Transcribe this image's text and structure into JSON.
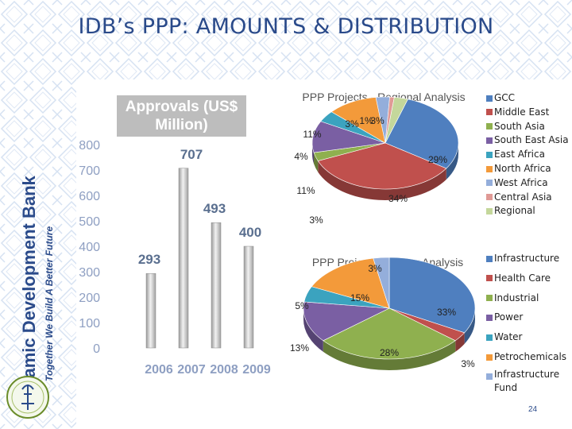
{
  "title": "IDB’s PPP: AMOUNTS & DISTRIBUTION",
  "sidebar": {
    "brand": "Islamic Development Bank",
    "tagline": "Together We Build A Better Future",
    "emblem": "idb-emblem"
  },
  "page_number": "24",
  "colors": {
    "title": "#2a4a8a",
    "bar": "#c8c8c8",
    "bar_labels": "#5a6f8f",
    "axis_labels": "#8e9fc2",
    "background_pattern": "#d6e2f2"
  },
  "chart_data": [
    {
      "type": "bar",
      "title": "Approvals (US$ Million)",
      "categories": [
        "2006",
        "2007",
        "2008",
        "2009"
      ],
      "values": [
        293,
        707,
        493,
        400
      ],
      "ylim": [
        0,
        800
      ],
      "yticks": [
        "0",
        "100",
        "200",
        "300",
        "400",
        "500",
        "600",
        "700",
        "800"
      ],
      "grid": false
    },
    {
      "type": "pie",
      "title": "PPP Projects - Regional Analysis",
      "legend_position": "right",
      "slices": [
        {
          "label": "GCC",
          "value": 29,
          "display": "29%",
          "color": "#4f7fbf"
        },
        {
          "label": "Middle East",
          "value": 34,
          "display": "34%",
          "color": "#c0504d"
        },
        {
          "label": "South Asia",
          "value": 3,
          "display": "3%",
          "color": "#8fb04f"
        },
        {
          "label": "South East Asia",
          "value": 11,
          "display": "11%",
          "color": "#7a5fa3"
        },
        {
          "label": "East Africa",
          "value": 4,
          "display": "4%",
          "color": "#3ba3bf"
        },
        {
          "label": "North Africa",
          "value": 11,
          "display": "11%",
          "color": "#f39a3a"
        },
        {
          "label": "West Africa",
          "value": 3,
          "display": "3%",
          "color": "#94aedb"
        },
        {
          "label": "Central Asia",
          "value": 1,
          "display": "1%",
          "color": "#e09a96"
        },
        {
          "label": "Regional",
          "value": 3,
          "display": "3%",
          "color": "#c4d79b"
        }
      ]
    },
    {
      "type": "pie",
      "title": "PPP Projects - Sector Analysis",
      "legend_position": "right",
      "slices": [
        {
          "label": "Infrastructure",
          "value": 33,
          "display": "33%",
          "color": "#4f7fbf"
        },
        {
          "label": "Health Care",
          "value": 3,
          "display": "3%",
          "color": "#c0504d"
        },
        {
          "label": "Industrial",
          "value": 28,
          "display": "28%",
          "color": "#8fb04f"
        },
        {
          "label": "Power",
          "value": 13,
          "display": "13%",
          "color": "#7a5fa3"
        },
        {
          "label": "Water",
          "value": 5,
          "display": "5%",
          "color": "#3ba3bf"
        },
        {
          "label": "Petrochemicals",
          "value": 15,
          "display": "15%",
          "color": "#f39a3a"
        },
        {
          "label": "Infrastructure Fund",
          "value": 3,
          "display": "3%",
          "color": "#94aedb"
        }
      ]
    }
  ]
}
